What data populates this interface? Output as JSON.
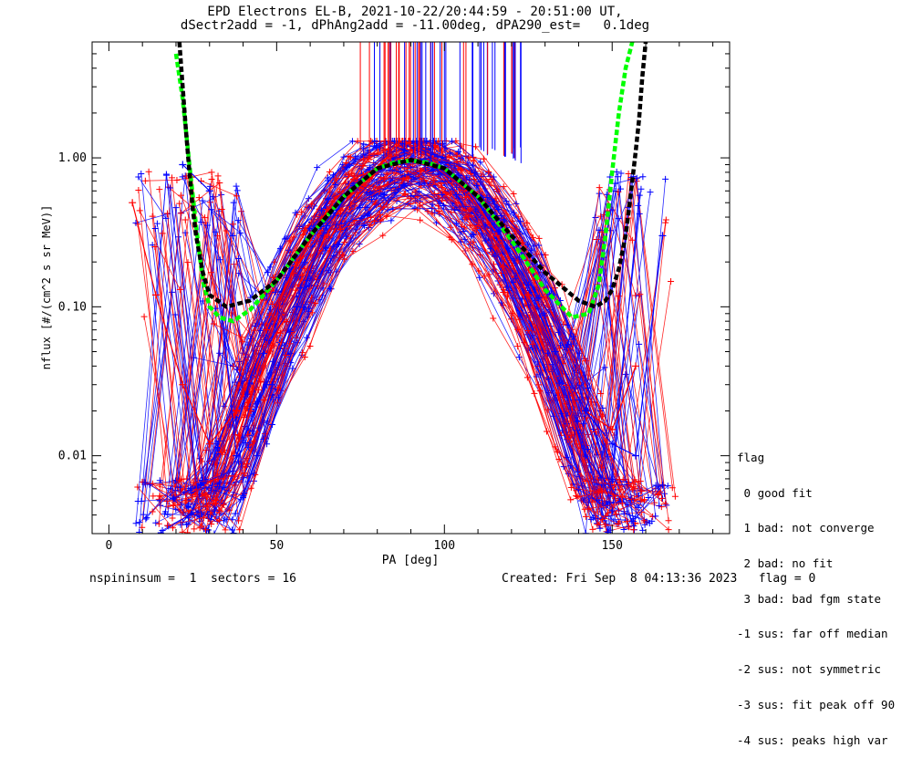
{
  "title": {
    "line1": "EPD Electrons EL-B, 2021-10-22/20:44:59 - 20:51:00 UT,",
    "line2": "dSectr2add = -1, dPhAng2add = -11.00deg, dPA290_est=   0.1deg"
  },
  "footer": {
    "left": "nspininsum =  1  sectors = 16",
    "right": "Created: Fri Sep  8 04:13:36 2023   flag = 0"
  },
  "legend": {
    "title": "flag",
    "items": [
      " 0 good fit",
      " 1 bad: not converge",
      " 2 bad: no fit",
      " 3 bad: bad fgm state",
      "-1 sus: far off median",
      "-2 sus: not symmetric",
      "-3 sus: fit peak off 90",
      "-4 sus: peaks high var"
    ]
  },
  "colors": {
    "series_a": "#ff0000",
    "series_b": "#0000ff",
    "fit_green": "#00ff00",
    "fit_black": "#000000"
  },
  "chart_data": {
    "type": "line",
    "title": "EPD Electrons EL-B, 2021-10-22/20:44:59 - 20:51:00 UT,",
    "xlabel": "PA [deg]",
    "ylabel": "nflux [#/(cm^2 s sr MeV)]",
    "xlim": [
      -5,
      185
    ],
    "ylim": [
      0.003,
      6
    ],
    "yscale": "log",
    "xticks": [
      0,
      50,
      100,
      150
    ],
    "xtick_labels": [
      "0",
      "50",
      "100",
      "150"
    ],
    "yticks": [
      0.01,
      0.1,
      1.0
    ],
    "ytick_labels": [
      "0.01",
      "0.10",
      "1.00"
    ],
    "grid": false,
    "series": [
      {
        "color": "#ff0000",
        "marker": "+",
        "x": [
          7,
          14,
          22,
          30,
          38,
          47,
          56,
          65,
          73,
          82,
          90,
          98,
          107,
          116,
          125,
          133,
          142,
          150,
          157
        ],
        "y": [
          0.5,
          0.12,
          0.03,
          0.012,
          0.02,
          0.07,
          0.2,
          0.45,
          0.72,
          0.9,
          0.95,
          0.85,
          0.6,
          0.3,
          0.12,
          0.05,
          0.02,
          0.015,
          0.04
        ]
      },
      {
        "color": "#0000ff",
        "marker": "+",
        "x": [
          22,
          30,
          38,
          47,
          56,
          65,
          73,
          82,
          90,
          98,
          107,
          116,
          125,
          133,
          142,
          150,
          157,
          165
        ],
        "y": [
          0.9,
          0.6,
          0.01,
          0.03,
          0.1,
          0.35,
          0.65,
          0.88,
          0.97,
          0.86,
          0.62,
          0.32,
          0.14,
          0.05,
          0.02,
          0.012,
          0.01,
          0.3
        ]
      },
      {
        "color": "#00ff00",
        "style": "dashed",
        "x": [
          20,
          22,
          24,
          26,
          28,
          30,
          33,
          37,
          42,
          50,
          60,
          70,
          80,
          85,
          90,
          95,
          100,
          110,
          120,
          130,
          138,
          143,
          146,
          148,
          150,
          152,
          154,
          156
        ],
        "y": [
          5,
          2.5,
          0.9,
          0.35,
          0.15,
          0.1,
          0.085,
          0.08,
          0.095,
          0.15,
          0.3,
          0.55,
          0.85,
          0.93,
          0.96,
          0.93,
          0.85,
          0.55,
          0.28,
          0.13,
          0.085,
          0.09,
          0.14,
          0.3,
          0.8,
          2,
          4,
          6
        ]
      },
      {
        "color": "#000000",
        "style": "dashed",
        "x": [
          21,
          22,
          23,
          24,
          25,
          26,
          28,
          30,
          35,
          42,
          50,
          60,
          70,
          80,
          90,
          100,
          110,
          120,
          130,
          140,
          145,
          148,
          150,
          152,
          154,
          155,
          156,
          157,
          158,
          159,
          160
        ],
        "y": [
          6,
          3,
          1.5,
          0.8,
          0.45,
          0.3,
          0.17,
          0.12,
          0.1,
          0.11,
          0.15,
          0.3,
          0.55,
          0.85,
          0.97,
          0.85,
          0.55,
          0.3,
          0.17,
          0.11,
          0.1,
          0.11,
          0.13,
          0.18,
          0.3,
          0.45,
          0.7,
          1.1,
          1.8,
          3.5,
          6
        ]
      }
    ]
  }
}
